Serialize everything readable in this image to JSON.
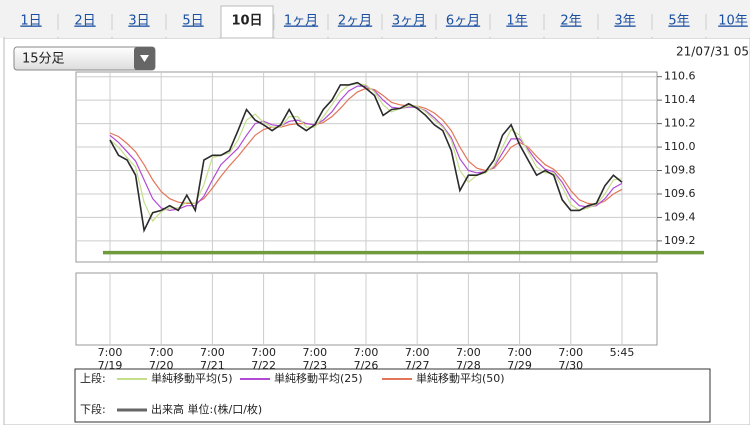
{
  "tabs": [
    "1日",
    "2日",
    "3日",
    "5日",
    "10日",
    "1ヶ月",
    "2ヶ月",
    "3ヶ月",
    "6ヶ月",
    "1年",
    "2年",
    "3年",
    "5年",
    "10年"
  ],
  "active_tab": 4,
  "interval_select": "15分足",
  "timestamp": "21/07/31 05",
  "chart_data": {
    "type": "line",
    "categories": [
      "7:00",
      null,
      null,
      null,
      null,
      null,
      "7:00",
      null,
      null,
      null,
      null,
      null,
      "7:00",
      null,
      null,
      null,
      null,
      null,
      "7:00",
      null,
      null,
      null,
      null,
      null,
      "7:00",
      null,
      null,
      null,
      null,
      null,
      "7:00",
      null,
      null,
      null,
      null,
      null,
      "7:00",
      null,
      null,
      null,
      null,
      null,
      "7:00",
      null,
      null,
      null,
      null,
      null,
      "7:00",
      null,
      null,
      null,
      null,
      null,
      "7:00",
      null,
      null,
      null,
      null,
      null,
      "5:45"
    ],
    "dates": [
      "7/19",
      null,
      null,
      null,
      null,
      null,
      "7/20",
      null,
      null,
      null,
      null,
      null,
      "7/21",
      null,
      null,
      null,
      null,
      null,
      "7/22",
      null,
      null,
      null,
      null,
      null,
      "7/23",
      null,
      null,
      null,
      null,
      null,
      "7/26",
      null,
      null,
      null,
      null,
      null,
      "7/27",
      null,
      null,
      null,
      null,
      null,
      "7/28",
      null,
      null,
      null,
      null,
      null,
      "7/29",
      null,
      null,
      null,
      null,
      null,
      "7/30",
      null,
      null,
      null,
      null,
      null,
      null
    ],
    "series": [
      {
        "color": "#2b2b2b",
        "values": [
          110.06,
          109.93,
          109.89,
          109.76,
          109.29,
          109.44,
          109.46,
          109.5,
          109.46,
          109.59,
          109.46,
          109.89,
          109.93,
          109.93,
          109.97,
          110.14,
          110.32,
          110.23,
          110.19,
          110.14,
          110.19,
          110.32,
          110.19,
          110.14,
          110.19,
          110.32,
          110.4,
          110.53,
          110.53,
          110.55,
          110.5,
          110.44,
          110.27,
          110.32,
          110.33,
          110.37,
          110.33,
          110.27,
          110.19,
          110.14,
          109.97,
          109.63,
          109.76,
          109.76,
          109.79,
          109.89,
          110.1,
          110.19,
          110.02,
          109.89,
          109.76,
          109.8,
          109.76,
          109.55,
          109.46,
          109.46,
          109.5,
          109.52,
          109.67,
          109.76,
          109.7
        ]
      },
      {
        "name": "単純移動平均(5)",
        "color": "#c5de8c",
        "values": [
          110.06,
          110.0,
          109.91,
          109.83,
          109.53,
          109.37,
          109.45,
          109.48,
          109.48,
          109.53,
          109.52,
          109.68,
          109.91,
          109.93,
          109.95,
          110.06,
          110.23,
          110.28,
          110.21,
          110.17,
          110.17,
          110.26,
          110.26,
          110.17,
          110.17,
          110.26,
          110.36,
          110.47,
          110.53,
          110.54,
          110.53,
          110.47,
          110.36,
          110.3,
          110.33,
          110.35,
          110.35,
          110.3,
          110.23,
          110.17,
          110.06,
          109.8,
          109.7,
          109.76,
          109.78,
          109.84,
          110.0,
          110.15,
          110.1,
          109.96,
          109.83,
          109.78,
          109.78,
          109.66,
          109.51,
          109.46,
          109.48,
          109.51,
          109.6,
          109.72,
          109.73
        ]
      },
      {
        "name": "単純移動平均(25)",
        "color": "#b34ad6",
        "values": [
          110.1,
          110.04,
          109.96,
          109.88,
          109.72,
          109.56,
          109.48,
          109.46,
          109.47,
          109.5,
          109.5,
          109.58,
          109.72,
          109.85,
          109.92,
          109.99,
          110.1,
          110.2,
          110.22,
          110.19,
          110.18,
          110.22,
          110.23,
          110.2,
          110.19,
          110.23,
          110.3,
          110.4,
          110.48,
          110.52,
          110.52,
          110.48,
          110.4,
          110.34,
          110.33,
          110.34,
          110.34,
          110.31,
          110.25,
          110.18,
          110.08,
          109.9,
          109.8,
          109.78,
          109.79,
          109.83,
          109.95,
          110.07,
          110.07,
          109.98,
          109.88,
          109.81,
          109.79,
          109.7,
          109.57,
          109.5,
          109.49,
          109.5,
          109.56,
          109.65,
          109.69
        ]
      },
      {
        "name": "単純移動平均(50)",
        "color": "#e2765a",
        "values": [
          110.12,
          110.09,
          110.03,
          109.96,
          109.85,
          109.72,
          109.62,
          109.56,
          109.53,
          109.52,
          109.52,
          109.56,
          109.65,
          109.75,
          109.84,
          109.92,
          110.01,
          110.1,
          110.15,
          110.17,
          110.17,
          110.19,
          110.2,
          110.2,
          110.19,
          110.21,
          110.26,
          110.33,
          110.41,
          110.47,
          110.5,
          110.49,
          110.44,
          110.38,
          110.36,
          110.35,
          110.35,
          110.33,
          110.29,
          110.23,
          110.14,
          110.0,
          109.88,
          109.82,
          109.8,
          109.82,
          109.9,
          110.0,
          110.04,
          110.0,
          109.92,
          109.85,
          109.81,
          109.74,
          109.63,
          109.55,
          109.52,
          109.51,
          109.54,
          109.6,
          109.64
        ]
      }
    ],
    "ylim": [
      109.02,
      110.64
    ],
    "yticks": [
      109.2,
      109.4,
      109.6,
      109.8,
      {
        "value": 110,
        "label": "110.0"
      },
      110.2,
      110.4,
      110.6
    ],
    "grid": true,
    "hline": {
      "value": 109.1,
      "color": "#6f9b3c"
    },
    "legend": {
      "upper_label": "上段:",
      "lower_label": "下段:",
      "volume_label": "出来高 単位:(株/口/枚)",
      "volume_color": "#666666"
    }
  }
}
